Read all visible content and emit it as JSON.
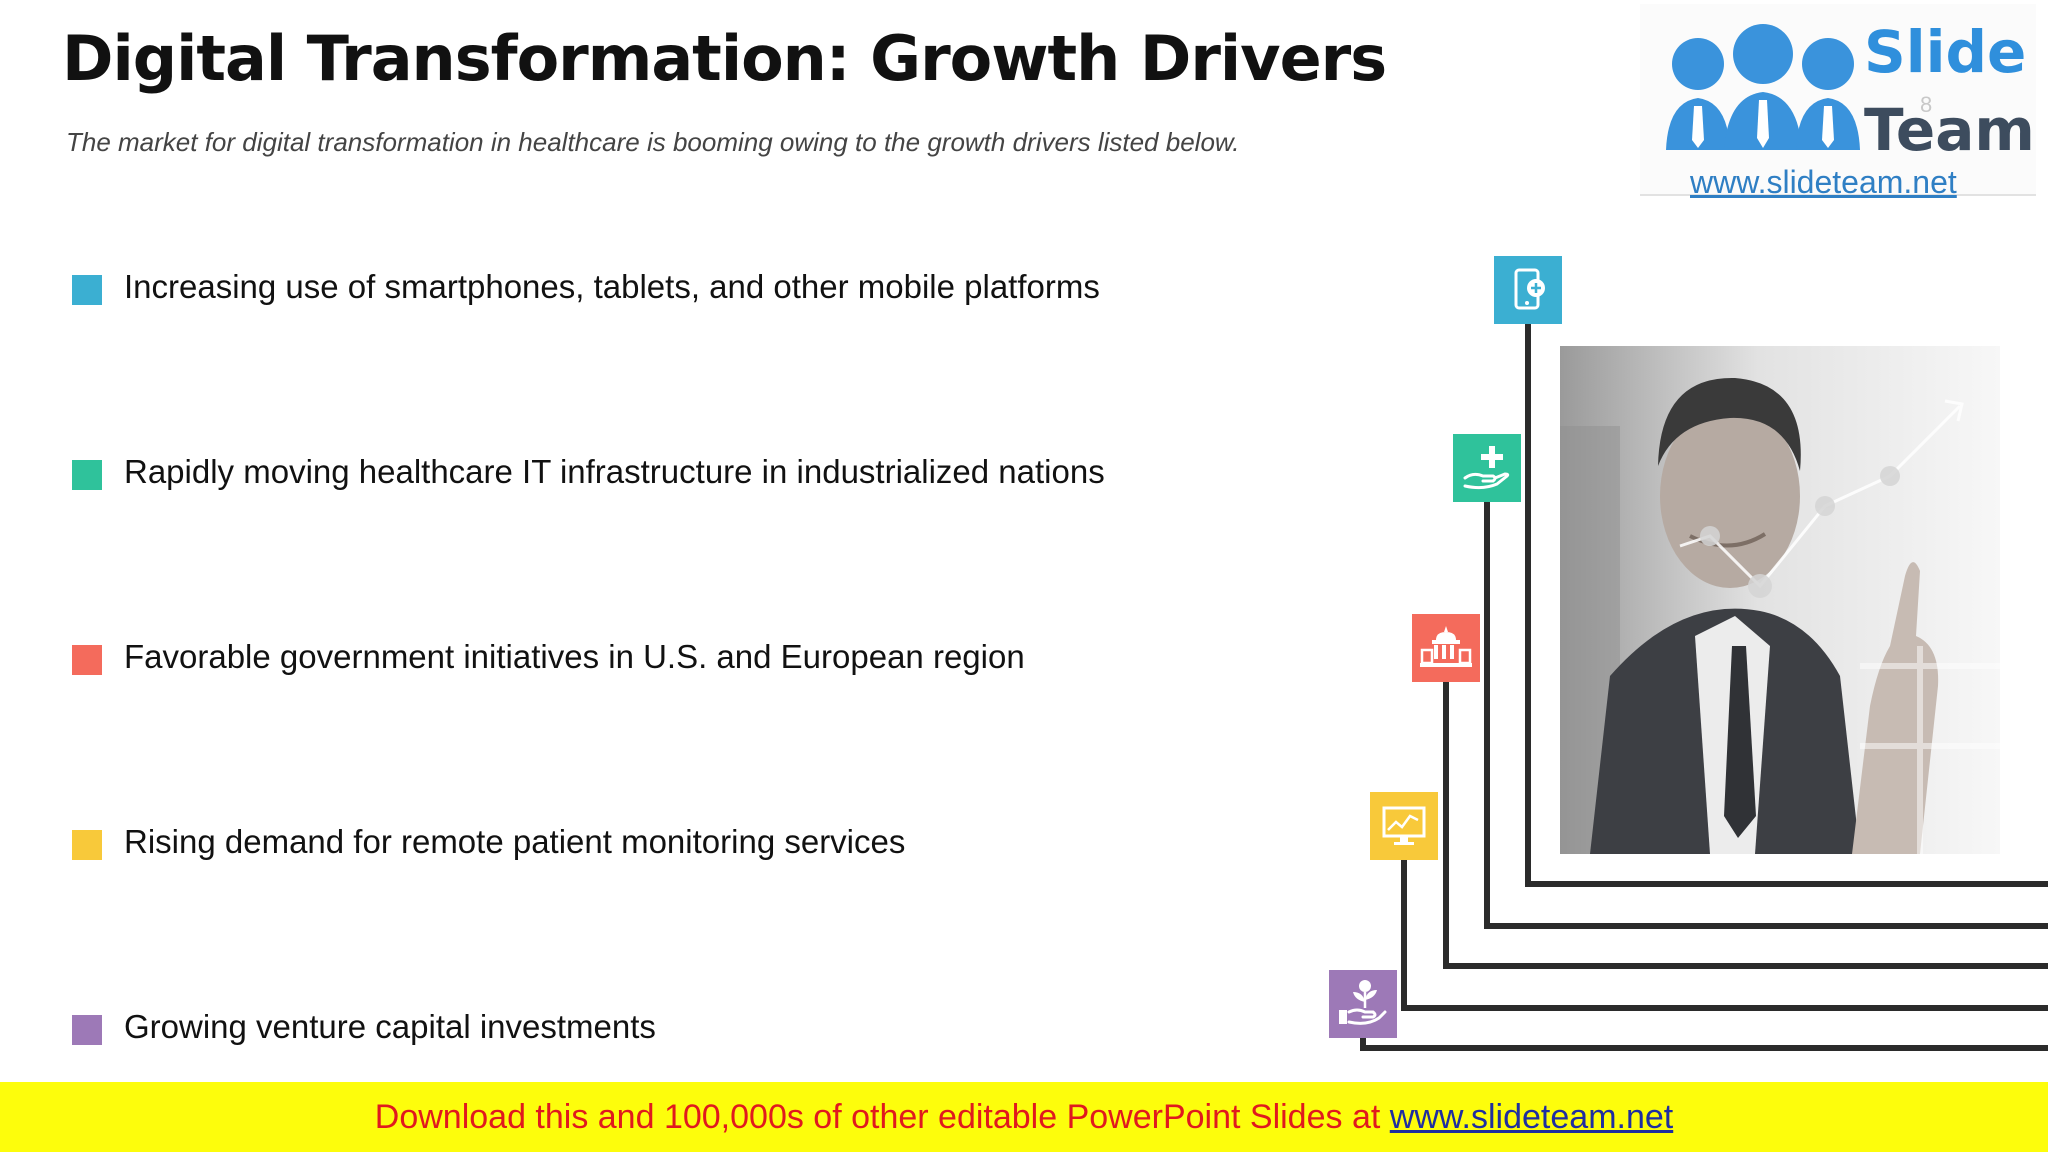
{
  "slide": {
    "title": "Digital Transformation: Growth Drivers",
    "subtitle": "The market for digital transformation in healthcare is booming owing to the growth drivers listed below."
  },
  "logo": {
    "word1": "Slide",
    "word2": "Team",
    "url": "www.slideteam.net",
    "page_number": "8"
  },
  "drivers": [
    {
      "label": "Increasing use of smartphones, tablets, and other mobile platforms",
      "color": "#3bafd2",
      "icon": "mobile-health-icon"
    },
    {
      "label": "Rapidly moving healthcare IT infrastructure in industrialized nations",
      "color": "#2fc29b",
      "icon": "hand-medical-cross-icon"
    },
    {
      "label": "Favorable government initiatives in U.S. and European region",
      "color": "#f46b5c",
      "icon": "government-building-icon"
    },
    {
      "label": "Rising demand for remote patient monitoring services",
      "color": "#f8c93a",
      "icon": "monitor-chart-icon"
    },
    {
      "label": "Growing venture capital investments",
      "color": "#9d79b7",
      "icon": "plant-investment-icon"
    }
  ],
  "photo": {
    "icon": "businessman-touching-screen-photo"
  },
  "banner": {
    "text": "Download this and 100,000s of other editable PowerPoint Slides at ",
    "link": "www.slideteam.net"
  }
}
